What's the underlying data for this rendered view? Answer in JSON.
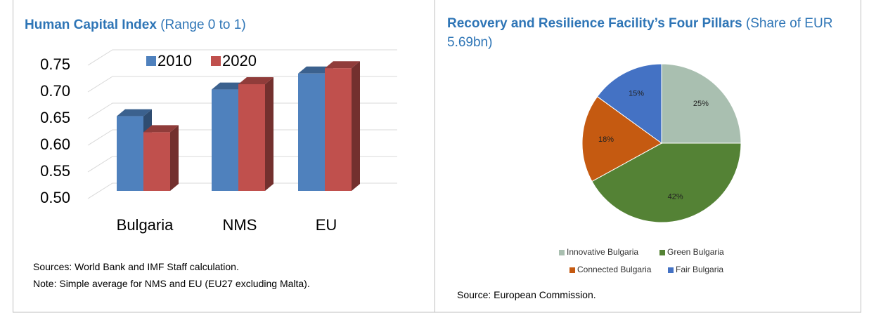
{
  "chart_data": [
    {
      "type": "bar3d",
      "title": "Human Capital Index",
      "subtitle": "(Range 0 to 1)",
      "categories": [
        "Bulgaria",
        "NMS",
        "EU"
      ],
      "series": [
        {
          "name": "2010",
          "color": "#4f81bd",
          "values": [
            0.64,
            0.69,
            0.72
          ]
        },
        {
          "name": "2020",
          "color": "#c0504d",
          "values": [
            0.61,
            0.7,
            0.73
          ]
        }
      ],
      "ylim": [
        0.5,
        0.75
      ],
      "yticks": [
        {
          "value": 0.5,
          "label": "0.50"
        },
        {
          "value": 0.55,
          "label": "0.55"
        },
        {
          "value": 0.6,
          "label": "0.60"
        },
        {
          "value": 0.65,
          "label": "0.65"
        },
        {
          "value": 0.7,
          "label": "0.70"
        },
        {
          "value": 0.75,
          "label": "0.75"
        }
      ],
      "grid": true,
      "legend": "top",
      "notes": [
        "Sources: World Bank and IMF Staff calculation.",
        "Note: Simple average for NMS and EU (EU27 excluding Malta)."
      ]
    },
    {
      "type": "pie",
      "title": "Recovery and Resilience Facility’s Four Pillars",
      "subtitle": "(Share of EUR 5.69bn)",
      "categories": [
        "Innovative Bulgaria",
        "Green Bulgaria",
        "Connected Bulgaria",
        "Fair Bulgaria"
      ],
      "values": [
        25,
        42,
        18,
        15
      ],
      "value_labels": [
        "25%",
        "42%",
        "18%",
        "15%"
      ],
      "colors": [
        "#a9bfb0",
        "#548235",
        "#c55a11",
        "#4472c4"
      ],
      "legend": "bottom",
      "notes": [
        "Source: European Commission."
      ]
    }
  ]
}
